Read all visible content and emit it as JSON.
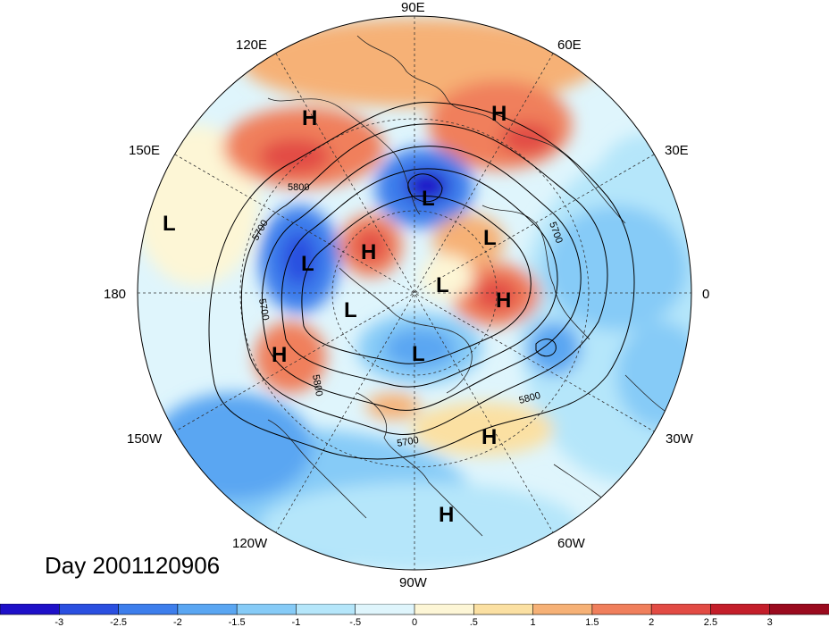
{
  "day_label": "Day 2001120906",
  "longitude_labels": {
    "lon_90e": "90E",
    "lon_120e": "120E",
    "lon_60e": "60E",
    "lon_150e": "150E",
    "lon_30e": "30E",
    "lon_180": "180",
    "lon_0": "0",
    "lon_150w": "150W",
    "lon_30w": "30W",
    "lon_120w": "120W",
    "lon_60w": "60W",
    "lon_90w": "90W"
  },
  "contour_labels": [
    "5800",
    "5700",
    "5700",
    "5800",
    "5700",
    "5800",
    "5700"
  ],
  "pressure_centers": [
    {
      "label": "H",
      "region": "east-asia"
    },
    {
      "label": "H",
      "region": "western-russia"
    },
    {
      "label": "L",
      "region": "west-pacific"
    },
    {
      "label": "L",
      "region": "siberia"
    },
    {
      "label": "H",
      "region": "arctic-siberia"
    },
    {
      "label": "L",
      "region": "bering"
    },
    {
      "label": "L",
      "region": "scandinavia"
    },
    {
      "label": "L",
      "region": "arctic"
    },
    {
      "label": "H",
      "region": "barents"
    },
    {
      "label": "L",
      "region": "alaska"
    },
    {
      "label": "H",
      "region": "northeast-pacific"
    },
    {
      "label": "L",
      "region": "hudson-bay"
    },
    {
      "label": "H",
      "region": "central-atlantic"
    },
    {
      "label": "H",
      "region": "caribbean"
    }
  ],
  "colorbar": {
    "tick_labels": [
      "-3",
      "-2.5",
      "-2",
      "-1.5",
      "-1",
      "-.5",
      "0",
      ".5",
      "1",
      "1.5",
      "2",
      "2.5",
      "3"
    ],
    "colors": [
      "#1e10c8",
      "#2a4fe0",
      "#3d7eec",
      "#5aa6f2",
      "#86cbf7",
      "#b5e6fa",
      "#dff5fc",
      "#fdf6d6",
      "#fbe0a2",
      "#f6b176",
      "#f07f5c",
      "#e24b44",
      "#c41e2a",
      "#9a0a1e"
    ]
  },
  "colors": {
    "ocean_neutral": "#dff5fc",
    "warm_anomaly": "#f07f5c",
    "cold_anomaly": "#3d7eec"
  }
}
